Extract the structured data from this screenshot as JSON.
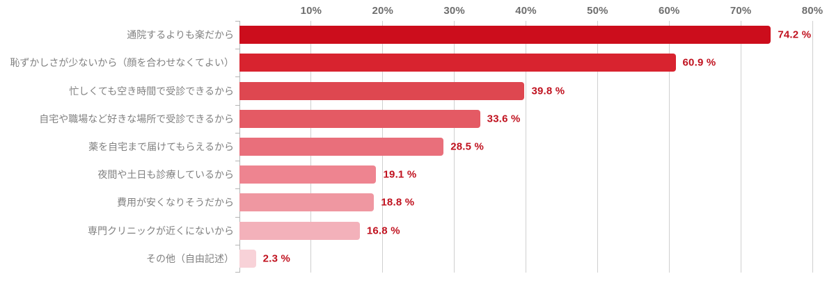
{
  "chart_data": {
    "type": "bar",
    "orientation": "horizontal",
    "title": "",
    "categories": [
      "通院するよりも楽だから",
      "恥ずかしさが少ないから（顔を合わせなくてよい）",
      "忙しくても空き時間で受診できるから",
      "自宅や職場など好きな場所で受診できるから",
      "薬を自宅まで届けてもらえるから",
      "夜間や土日も診療しているから",
      "費用が安くなりそうだから",
      "専門クリニックが近くにないから",
      "その他（自由記述）"
    ],
    "values": [
      74.2,
      60.9,
      39.8,
      33.6,
      28.5,
      19.1,
      18.8,
      16.8,
      2.3
    ],
    "value_labels": [
      "74.2 %",
      "60.9 %",
      "39.8 %",
      "33.6 %",
      "28.5 %",
      "19.1 %",
      "18.8 %",
      "16.8 %",
      "2.3 %"
    ],
    "bar_colors": [
      "#cc0d1c",
      "#d8232f",
      "#de4750",
      "#e45a64",
      "#e96f7b",
      "#ee8490",
      "#ef97a1",
      "#f3b1ba",
      "#f8d2d8"
    ],
    "xlabel": "",
    "ylabel": "",
    "xlim": [
      0,
      80
    ],
    "x_ticks": [
      "10%",
      "20%",
      "30%",
      "40%",
      "50%",
      "60%",
      "70%",
      "80%"
    ],
    "grid": true,
    "legend": "none",
    "colors": {
      "background": "#ffffff",
      "value_label": "#c0121f",
      "category_label": "#818181",
      "axis_tick_label": "#6e6e6e",
      "gridline": "#cfcfcf",
      "axis_line": "#b5b5b5"
    }
  }
}
